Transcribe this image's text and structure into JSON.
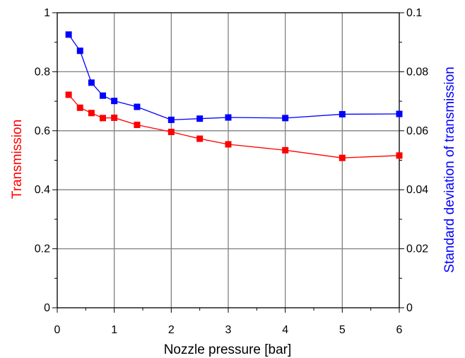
{
  "chart_data": {
    "type": "line",
    "xlabel": "Nozzle pressure [bar]",
    "ylabel_left": "Transmission",
    "ylabel_right": "Standard deviation of transmission",
    "xlim": [
      0,
      6
    ],
    "ylim_left": [
      0,
      1
    ],
    "ylim_right": [
      0,
      0.1
    ],
    "grid": true,
    "x_ticks": [
      "0",
      "1",
      "2",
      "3",
      "4",
      "5",
      "6"
    ],
    "y_left_ticks": [
      "0",
      "0.2",
      "0.4",
      "0.6",
      "0.8",
      "1"
    ],
    "y_right_ticks": [
      "0",
      "0.02",
      "0.04",
      "0.06",
      "0.08",
      "0.1"
    ],
    "series": [
      {
        "axis": "left",
        "color": "#ff0000",
        "x": [
          0.2,
          0.4,
          0.6,
          0.8,
          1.0,
          1.4,
          2.0,
          2.5,
          3.0,
          4.0,
          5.0,
          6.0
        ],
        "y": [
          0.722,
          0.678,
          0.66,
          0.643,
          0.644,
          0.62,
          0.596,
          0.573,
          0.554,
          0.534,
          0.508,
          0.516
        ]
      },
      {
        "axis": "right",
        "color": "#0000ff",
        "x": [
          0.2,
          0.4,
          0.6,
          0.8,
          1.0,
          1.4,
          2.0,
          2.5,
          3.0,
          4.0,
          5.0,
          6.0
        ],
        "y": [
          0.0926,
          0.0871,
          0.0763,
          0.0719,
          0.0701,
          0.0681,
          0.0637,
          0.0641,
          0.0645,
          0.0643,
          0.0656,
          0.0657
        ]
      }
    ]
  }
}
